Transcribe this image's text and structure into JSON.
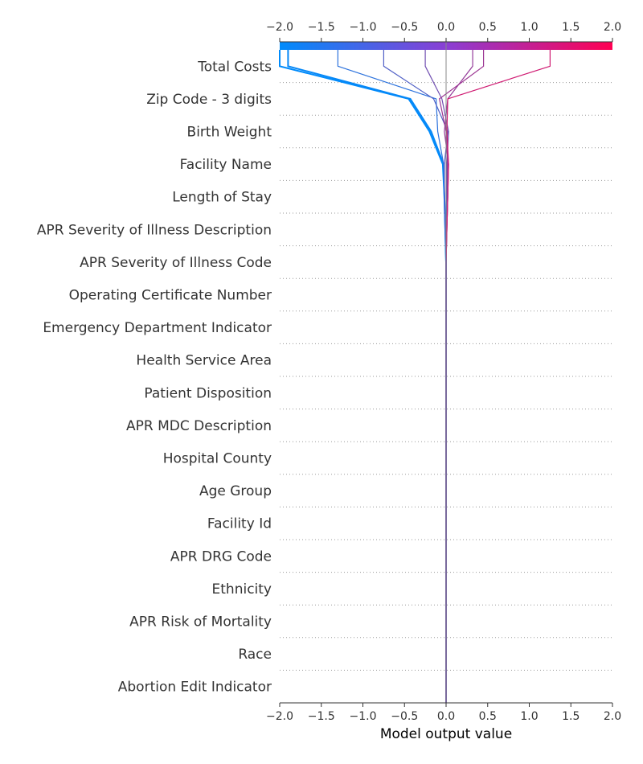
{
  "chart_data": {
    "type": "line",
    "subtype": "decision_plot",
    "xlabel": "Model output value",
    "xlim": [
      -2.0,
      2.0
    ],
    "x_ticks": [
      "−2.0",
      "−1.5",
      "−1.0",
      "−0.5",
      "0.0",
      "0.5",
      "1.0",
      "1.5",
      "2.0"
    ],
    "base_value": 0.0,
    "features": [
      "Total Costs",
      "Zip Code - 3 digits",
      "Birth Weight",
      "Facility Name",
      "Length of Stay",
      "APR Severity of Illness Description",
      "APR Severity of Illness Code",
      "Operating Certificate Number",
      "Emergency Department Indicator",
      "Health Service Area",
      "Patient Disposition",
      "APR MDC Description",
      "Hospital County",
      "Age Group",
      "Facility Id",
      "APR DRG Code",
      "Ethnicity",
      "APR Risk of Mortality",
      "Race",
      "Abortion Edit Indicator"
    ],
    "colormap": [
      "#008bfb",
      "#ff0052"
    ],
    "series_note": "each path lists output after features from bottom (Abortion Edit Indicator) to top (Total Costs); last value is final output",
    "series": [
      {
        "values": [
          0,
          0,
          0,
          0,
          0,
          0,
          0,
          0,
          0,
          0,
          0,
          0,
          0,
          0,
          -0.01,
          -0.02,
          -0.04,
          -0.2,
          -0.45,
          -2.0
        ]
      },
      {
        "values": [
          0,
          0,
          0,
          0,
          0,
          0,
          0,
          0,
          0,
          0,
          0,
          0,
          0,
          0,
          -0.01,
          -0.02,
          -0.03,
          -0.18,
          -0.43,
          -1.9
        ]
      },
      {
        "values": [
          0,
          0,
          0,
          0,
          0,
          0,
          0,
          0,
          0,
          0,
          0,
          0,
          0,
          0,
          -0.01,
          -0.02,
          -0.03,
          -0.1,
          -0.12,
          -1.3
        ]
      },
      {
        "values": [
          0,
          0,
          0,
          0,
          0,
          0,
          0,
          0,
          0,
          0,
          0,
          0,
          0,
          0,
          -0.01,
          -0.02,
          -0.02,
          0.02,
          -0.15,
          -0.75
        ]
      },
      {
        "values": [
          0,
          0,
          0,
          0,
          0,
          0,
          0,
          0,
          0,
          0,
          0,
          0,
          0,
          0,
          0,
          0.01,
          0.01,
          0.03,
          -0.05,
          -0.25
        ]
      },
      {
        "values": [
          0,
          0,
          0,
          0,
          0,
          0,
          0,
          0,
          0,
          0,
          0,
          0,
          0,
          0,
          0.01,
          0.02,
          0.03,
          -0.02,
          0.02,
          0.32
        ]
      },
      {
        "values": [
          0,
          0,
          0,
          0,
          0,
          0,
          0,
          0,
          0,
          0,
          0,
          0,
          0,
          0,
          0.01,
          0.02,
          0.02,
          0.0,
          -0.08,
          0.45
        ]
      },
      {
        "values": [
          0,
          0,
          0,
          0,
          0,
          0,
          0,
          0,
          0,
          0,
          0,
          0,
          0,
          0,
          0.01,
          0.02,
          0.03,
          0.01,
          0.02,
          1.25
        ]
      }
    ]
  }
}
